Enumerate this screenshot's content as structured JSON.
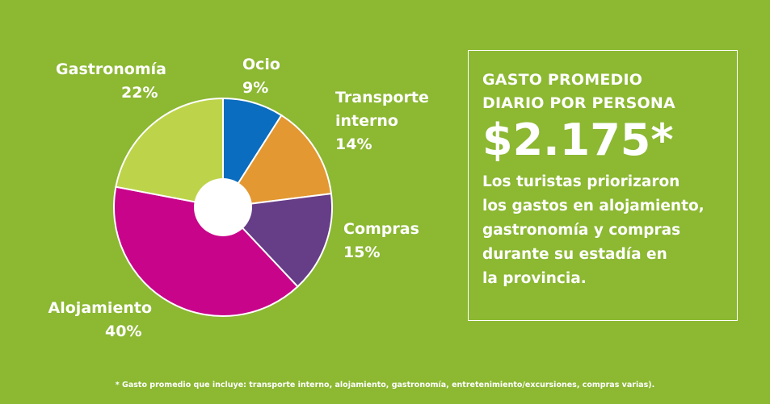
{
  "chart_data": {
    "type": "pie",
    "donut": true,
    "slices": [
      {
        "label": "Ocio",
        "value": 9,
        "value_label": "9%",
        "color": "#0a6dbf"
      },
      {
        "label": "Transporte interno",
        "value": 14,
        "value_label": "14%",
        "color": "#e39832"
      },
      {
        "label": "Compras",
        "value": 15,
        "value_label": "15%",
        "color": "#663d87"
      },
      {
        "label": "Alojamiento",
        "value": 40,
        "value_label": "40%",
        "color": "#c8048a"
      },
      {
        "label": "Gastronomía",
        "value": 22,
        "value_label": "22%",
        "color": "#bdd44a"
      }
    ]
  },
  "info": {
    "heading_line1": "GASTO PROMEDIO",
    "heading_line2": "DIARIO POR PERSONA",
    "amount": "$2.175*",
    "text_lines": [
      "Los turistas priorizaron",
      "los gastos en alojamiento,",
      "gastronomía y compras",
      "durante su estadía en",
      "la provincia."
    ]
  },
  "footnote": "* Gasto promedio que incluye: transporte interno, alojamiento, gastronomía, entretenimiento/excursiones, compras varias).",
  "colors": {
    "background": "#8cb832",
    "text": "#ffffff",
    "hole": "#ffffff"
  }
}
